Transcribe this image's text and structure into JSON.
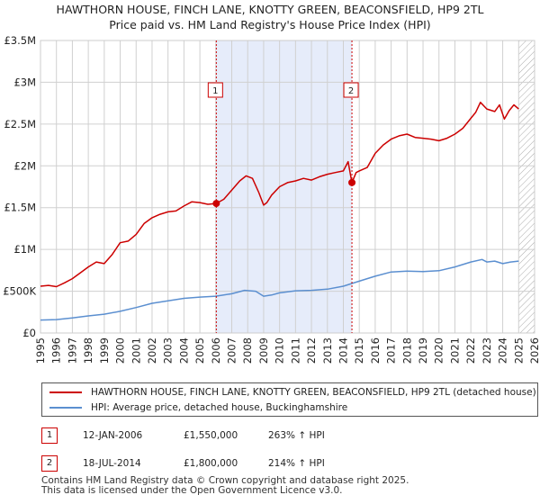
{
  "title_line1": "HAWTHORN HOUSE, FINCH LANE, KNOTTY GREEN, BEACONSFIELD, HP9 2TL",
  "title_line2": "Price paid vs. HM Land Registry's House Price Index (HPI)",
  "colors": {
    "property": "#cc0000",
    "hpi": "#5b8fd0",
    "shade": "#e6ecfa",
    "grid": "#d0d0d0",
    "marker_line": "#cc0000"
  },
  "chart_data": {
    "type": "line",
    "title": "HAWTHORN HOUSE, FINCH LANE, KNOTTY GREEN, BEACONSFIELD, HP9 2TL — Price paid vs. HM Land Registry's House Price Index (HPI)",
    "xlabel": "",
    "ylabel": "",
    "xlim": [
      1995,
      2026
    ],
    "ylim": [
      0,
      3500000
    ],
    "x_ticks": [
      "1995",
      "1996",
      "1997",
      "1998",
      "1999",
      "2000",
      "2001",
      "2002",
      "2003",
      "2004",
      "2005",
      "2006",
      "2007",
      "2008",
      "2009",
      "2010",
      "2011",
      "2012",
      "2013",
      "2014",
      "2015",
      "2016",
      "2017",
      "2018",
      "2019",
      "2020",
      "2021",
      "2022",
      "2023",
      "2024",
      "2025",
      "2026"
    ],
    "y_ticks": [
      {
        "value": 0,
        "label": "£0"
      },
      {
        "value": 500000,
        "label": "£500K"
      },
      {
        "value": 1000000,
        "label": "£1M"
      },
      {
        "value": 1500000,
        "label": "£1.5M"
      },
      {
        "value": 2000000,
        "label": "£2M"
      },
      {
        "value": 2500000,
        "label": "£2.5M"
      },
      {
        "value": 3000000,
        "label": "£3M"
      },
      {
        "value": 3500000,
        "label": "£3.5M"
      }
    ],
    "shaded_range": [
      2006.03,
      2014.54
    ],
    "future_hatch_from": 2025.0,
    "series": [
      {
        "name": "HAWTHORN HOUSE, FINCH LANE, KNOTTY GREEN, BEACONSFIELD, HP9 2TL (detached house)",
        "color": "#cc0000",
        "x": [
          1995.0,
          1995.5,
          1996.0,
          1996.5,
          1997.0,
          1997.5,
          1998.0,
          1998.5,
          1999.0,
          1999.5,
          2000.0,
          2000.5,
          2001.0,
          2001.5,
          2002.0,
          2002.5,
          2003.0,
          2003.5,
          2004.0,
          2004.5,
          2005.0,
          2005.5,
          2006.03,
          2006.5,
          2007.0,
          2007.5,
          2007.9,
          2008.3,
          2008.7,
          2009.0,
          2009.2,
          2009.5,
          2010.0,
          2010.5,
          2011.0,
          2011.5,
          2012.0,
          2012.5,
          2013.0,
          2013.5,
          2014.0,
          2014.3,
          2014.54,
          2014.8,
          2015.0,
          2015.5,
          2016.0,
          2016.5,
          2017.0,
          2017.5,
          2018.0,
          2018.5,
          2019.0,
          2019.5,
          2020.0,
          2020.5,
          2021.0,
          2021.5,
          2022.0,
          2022.3,
          2022.6,
          2023.0,
          2023.5,
          2023.8,
          2024.1,
          2024.4,
          2024.7,
          2025.0
        ],
        "y": [
          560000,
          570000,
          555000,
          600000,
          650000,
          720000,
          790000,
          850000,
          830000,
          940000,
          1080000,
          1100000,
          1180000,
          1310000,
          1380000,
          1420000,
          1450000,
          1460000,
          1520000,
          1570000,
          1560000,
          1540000,
          1550000,
          1600000,
          1710000,
          1820000,
          1880000,
          1850000,
          1680000,
          1530000,
          1560000,
          1650000,
          1750000,
          1800000,
          1820000,
          1850000,
          1830000,
          1870000,
          1900000,
          1920000,
          1940000,
          2050000,
          1800000,
          1920000,
          1940000,
          1980000,
          2150000,
          2250000,
          2320000,
          2360000,
          2380000,
          2340000,
          2330000,
          2320000,
          2300000,
          2330000,
          2380000,
          2450000,
          2570000,
          2640000,
          2760000,
          2680000,
          2650000,
          2730000,
          2560000,
          2660000,
          2730000,
          2680000
        ]
      },
      {
        "name": "HPI: Average price, detached house, Buckinghamshire",
        "color": "#5b8fd0",
        "x": [
          1995.0,
          1996.0,
          1997.0,
          1998.0,
          1999.0,
          2000.0,
          2001.0,
          2002.0,
          2003.0,
          2004.0,
          2005.0,
          2006.0,
          2007.0,
          2007.8,
          2008.5,
          2009.0,
          2009.5,
          2010.0,
          2011.0,
          2012.0,
          2013.0,
          2014.0,
          2015.0,
          2016.0,
          2017.0,
          2018.0,
          2019.0,
          2020.0,
          2021.0,
          2022.0,
          2022.7,
          2023.0,
          2023.5,
          2024.0,
          2024.5,
          2025.0
        ],
        "y": [
          155000,
          160000,
          180000,
          205000,
          225000,
          260000,
          305000,
          355000,
          385000,
          415000,
          430000,
          440000,
          470000,
          510000,
          500000,
          440000,
          455000,
          480000,
          505000,
          510000,
          525000,
          560000,
          620000,
          680000,
          730000,
          740000,
          735000,
          745000,
          790000,
          850000,
          880000,
          850000,
          860000,
          830000,
          850000,
          860000
        ]
      }
    ],
    "sales": [
      {
        "id": "1",
        "x": 2006.03,
        "y": 1550000,
        "date": "12-JAN-2006",
        "price": "£1,550,000",
        "hpi": "263% ↑ HPI"
      },
      {
        "id": "2",
        "x": 2014.54,
        "y": 1800000,
        "date": "18-JUL-2014",
        "price": "£1,800,000",
        "hpi": "214% ↑ HPI"
      }
    ]
  },
  "legend": {
    "property_label": "HAWTHORN HOUSE, FINCH LANE, KNOTTY GREEN, BEACONSFIELD, HP9 2TL (detached house)",
    "hpi_label": "HPI: Average price, detached house, Buckinghamshire"
  },
  "footer": {
    "line1": "Contains HM Land Registry data © Crown copyright and database right 2025.",
    "line2": "This data is licensed under the Open Government Licence v3.0."
  }
}
